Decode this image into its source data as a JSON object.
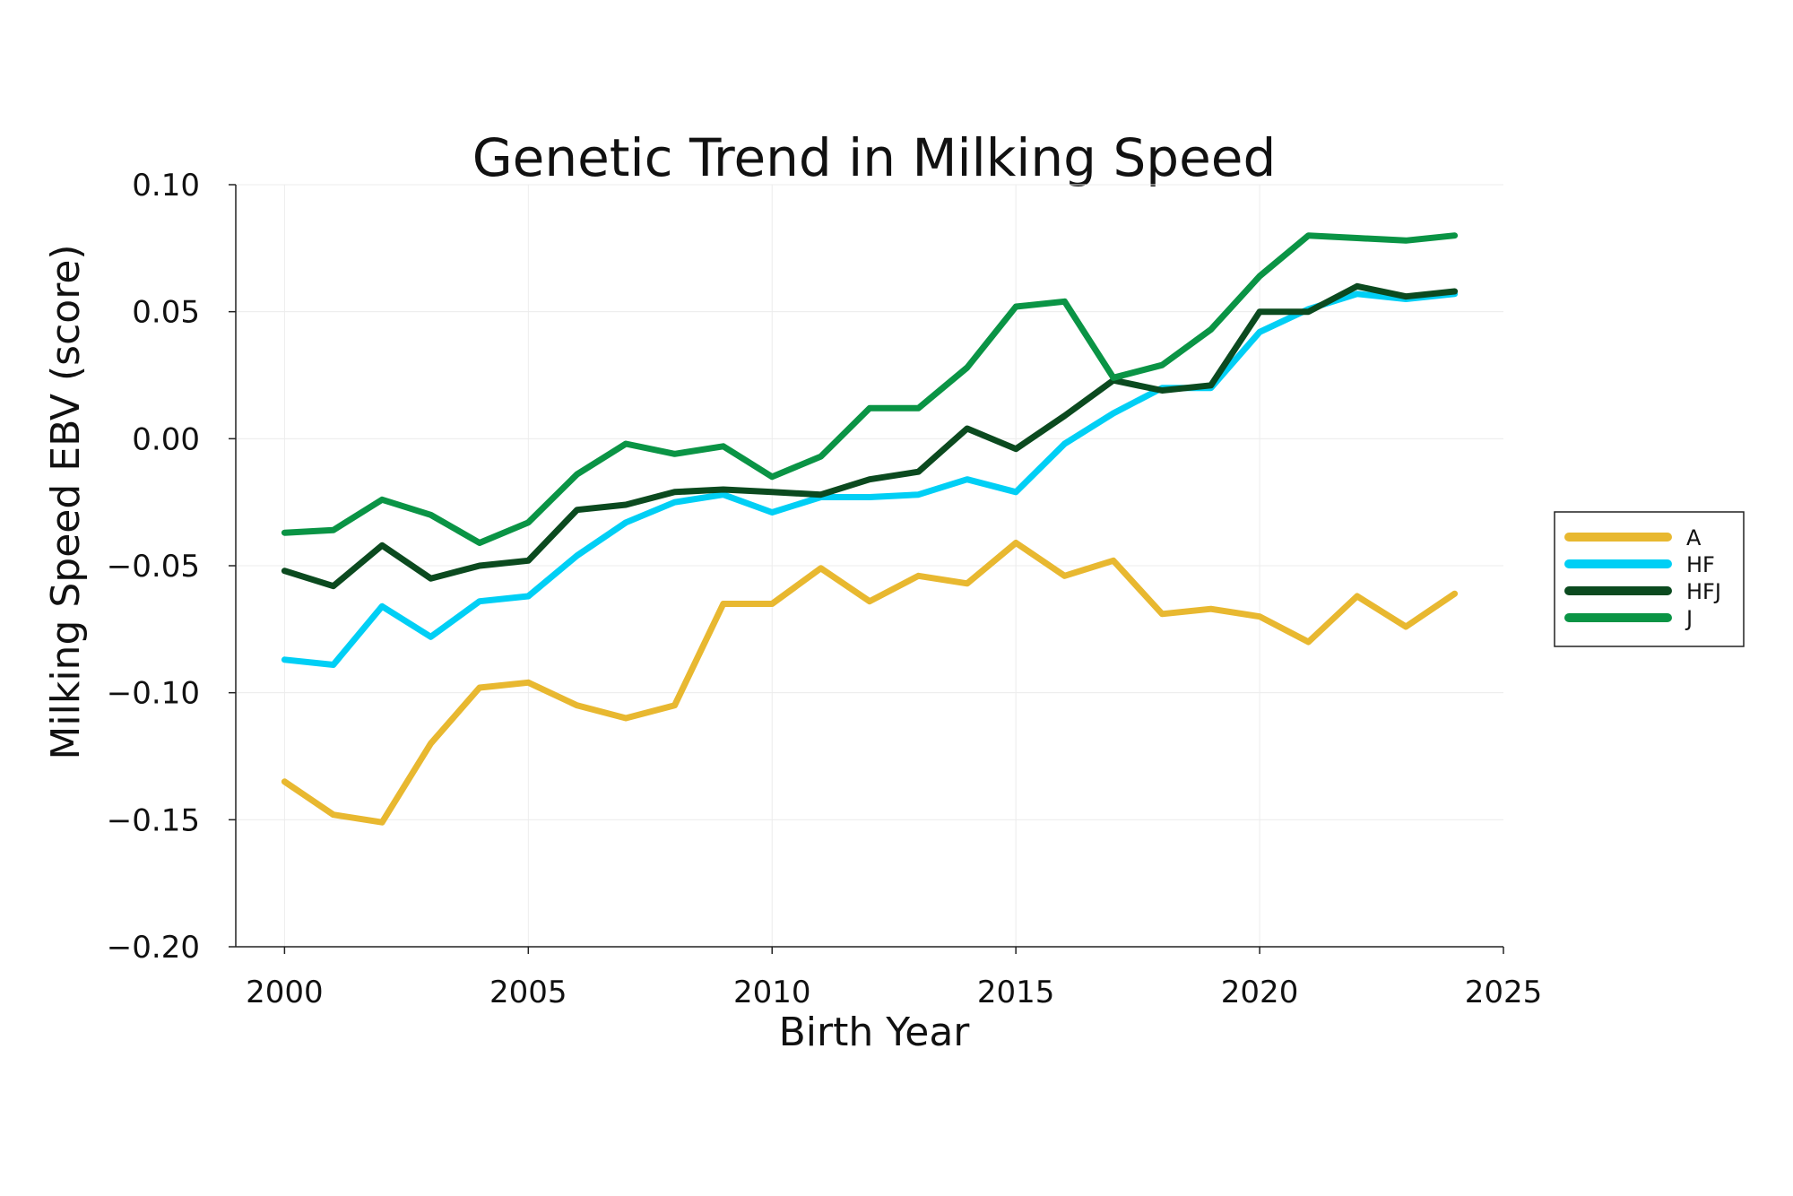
{
  "chart_data": {
    "type": "line",
    "title": "Genetic Trend in Milking Speed",
    "xlabel": "Birth Year",
    "ylabel": "Milking Speed EBV (score)",
    "xlim": [
      1999,
      2025
    ],
    "ylim": [
      -0.2,
      0.1
    ],
    "x_ticks": [
      2000,
      2005,
      2010,
      2015,
      2020,
      2025
    ],
    "x_tick_labels": [
      "2000",
      "2005",
      "2010",
      "2015",
      "2020",
      "2025"
    ],
    "y_ticks": [
      -0.2,
      -0.15,
      -0.1,
      -0.05,
      0.0,
      0.05,
      0.1
    ],
    "y_tick_labels": [
      "−0.20",
      "−0.15",
      "−0.10",
      "−0.05",
      "0.00",
      "0.05",
      "0.10"
    ],
    "grid": true,
    "legend_position": "right",
    "x": [
      2000,
      2001,
      2002,
      2003,
      2004,
      2005,
      2006,
      2007,
      2008,
      2009,
      2010,
      2011,
      2012,
      2013,
      2014,
      2015,
      2016,
      2017,
      2018,
      2019,
      2020,
      2021,
      2022,
      2023,
      2024
    ],
    "series": [
      {
        "name": "A",
        "color": "#E8B830",
        "values": [
          -0.135,
          -0.148,
          -0.151,
          -0.12,
          -0.098,
          -0.096,
          -0.105,
          -0.11,
          -0.105,
          -0.065,
          -0.065,
          -0.051,
          -0.064,
          -0.054,
          -0.057,
          -0.041,
          -0.054,
          -0.048,
          -0.069,
          -0.067,
          -0.07,
          -0.08,
          -0.062,
          -0.074,
          -0.061
        ]
      },
      {
        "name": "HF",
        "color": "#00CFF5",
        "values": [
          -0.087,
          -0.089,
          -0.066,
          -0.078,
          -0.064,
          -0.062,
          -0.046,
          -0.033,
          -0.025,
          -0.022,
          -0.029,
          -0.023,
          -0.023,
          -0.022,
          -0.016,
          -0.021,
          -0.002,
          0.01,
          0.02,
          0.02,
          0.042,
          0.051,
          0.057,
          0.055,
          0.057
        ]
      },
      {
        "name": "HFJ",
        "color": "#0B4A1F",
        "values": [
          -0.052,
          -0.058,
          -0.042,
          -0.055,
          -0.05,
          -0.048,
          -0.028,
          -0.026,
          -0.021,
          -0.02,
          -0.021,
          -0.022,
          -0.016,
          -0.013,
          0.004,
          -0.004,
          0.009,
          0.023,
          0.019,
          0.021,
          0.05,
          0.05,
          0.06,
          0.056,
          0.058
        ]
      },
      {
        "name": "J",
        "color": "#0A9445",
        "values": [
          -0.037,
          -0.036,
          -0.024,
          -0.03,
          -0.041,
          -0.033,
          -0.014,
          -0.002,
          -0.006,
          -0.003,
          -0.015,
          -0.007,
          0.012,
          0.012,
          0.028,
          0.052,
          0.054,
          0.024,
          0.029,
          0.043,
          0.064,
          0.08,
          0.079,
          0.078,
          0.08
        ]
      }
    ]
  }
}
